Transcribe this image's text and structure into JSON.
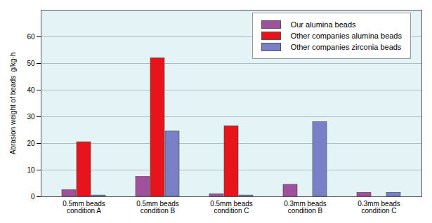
{
  "chart_data": {
    "type": "bar",
    "y_label": "Abrasion weight of beads  g/kg·h",
    "categories": [
      "0.5mm beads\ncondition A",
      "0.5mm beads\ncondition B",
      "0.5mm beads\ncondition C",
      "0.3mm beads\ncondition B",
      "0.3mm beads\ncondition C"
    ],
    "series": [
      {
        "name": "Our alumina beads",
        "color": "#a0509c",
        "values": [
          2.5,
          7.5,
          1,
          4.5,
          1.5
        ]
      },
      {
        "name": "Other companies alumina beads",
        "color": "#e8141c",
        "values": [
          20.5,
          52,
          26.5,
          null,
          null
        ]
      },
      {
        "name": "Other companies zirconia beads",
        "color": "#7a80c8",
        "values": [
          0.5,
          24.5,
          0.5,
          28,
          1.5
        ]
      }
    ],
    "ylim": [
      0,
      70
    ],
    "yticks": [
      0,
      10,
      20,
      30,
      40,
      50,
      60
    ],
    "grid": true,
    "legend": "top-right"
  }
}
